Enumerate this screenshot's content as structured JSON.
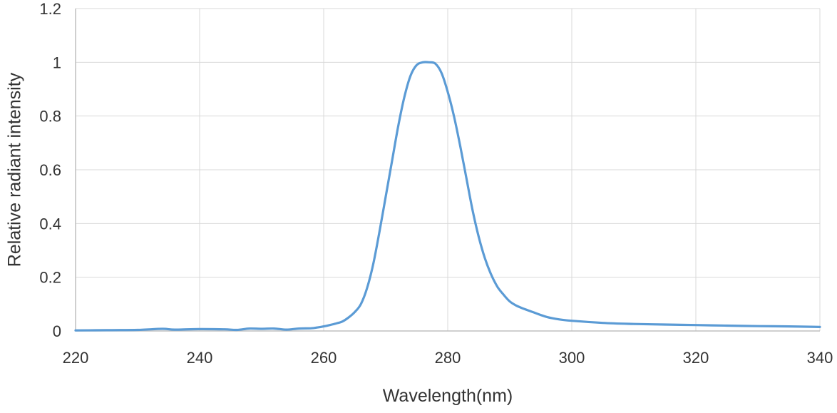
{
  "chart_data": {
    "type": "line",
    "title": "",
    "xlabel": "Wavelength(nm)",
    "ylabel": "Relative radiant intensity",
    "xlim": [
      220,
      340
    ],
    "ylim": [
      0,
      1.2
    ],
    "x_ticks": [
      220,
      240,
      260,
      280,
      300,
      320,
      340
    ],
    "y_ticks": [
      0,
      0.2,
      0.4,
      0.6,
      0.8,
      1,
      1.2
    ],
    "x_tick_labels": [
      "220",
      "240",
      "260",
      "280",
      "300",
      "320",
      "340"
    ],
    "y_tick_labels": [
      "0",
      "0.2",
      "0.4",
      "0.6",
      "0.8",
      "1",
      "1.2"
    ],
    "grid": true,
    "legend": "none",
    "colors": {
      "line": "#5b9bd5",
      "grid": "#d9d9d9",
      "axis": "#bfbfbf"
    },
    "series": [
      {
        "x": [
          220,
          225,
          230,
          234,
          236,
          240,
          244,
          246,
          248,
          250,
          252,
          254,
          256,
          258,
          259,
          260,
          261,
          262,
          263,
          264,
          265,
          266,
          267,
          268,
          269,
          270,
          271,
          272,
          273,
          274,
          275,
          276,
          277,
          278,
          279,
          280,
          281,
          282,
          283,
          284,
          285,
          286,
          287,
          288,
          289,
          290,
          291,
          292,
          294,
          296,
          298,
          300,
          305,
          310,
          315,
          320,
          325,
          330,
          335,
          340
        ],
        "y": [
          0.002,
          0.003,
          0.004,
          0.008,
          0.005,
          0.007,
          0.006,
          0.004,
          0.009,
          0.008,
          0.009,
          0.005,
          0.009,
          0.01,
          0.013,
          0.017,
          0.022,
          0.028,
          0.035,
          0.05,
          0.07,
          0.1,
          0.16,
          0.25,
          0.37,
          0.5,
          0.63,
          0.76,
          0.87,
          0.95,
          0.99,
          1.0,
          1.0,
          0.995,
          0.96,
          0.89,
          0.8,
          0.69,
          0.57,
          0.45,
          0.35,
          0.27,
          0.21,
          0.165,
          0.135,
          0.11,
          0.095,
          0.085,
          0.068,
          0.052,
          0.043,
          0.038,
          0.03,
          0.026,
          0.024,
          0.022,
          0.02,
          0.018,
          0.017,
          0.015
        ]
      }
    ]
  }
}
